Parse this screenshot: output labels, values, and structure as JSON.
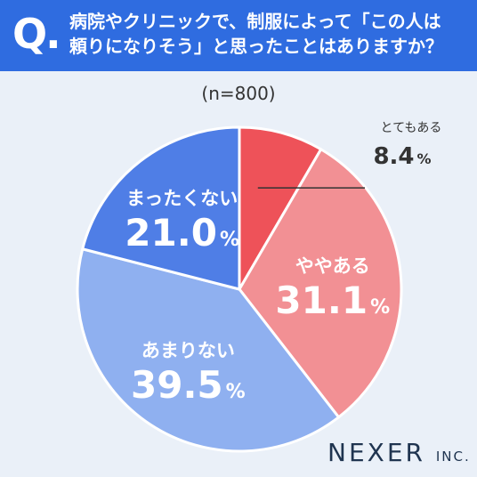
{
  "question": {
    "mark": "Q.",
    "line1": "病院やクリニックで、制服によって「この人は",
    "line2": "頼りになりそう」と思ったことはありますか？"
  },
  "sample_label": "(n=800)",
  "brand": {
    "name": "NEXER",
    "suffix": "INC."
  },
  "chart_data": {
    "type": "pie",
    "unit": "%",
    "slices": [
      {
        "label": "とてもある",
        "value": 8.4,
        "display": "8.4",
        "color": "#ee5259"
      },
      {
        "label": "ややある",
        "value": 31.1,
        "display": "31.1",
        "color": "#f29094"
      },
      {
        "label": "あまりない",
        "value": 39.5,
        "display": "39.5",
        "color": "#8fb0f0"
      },
      {
        "label": "まったくない",
        "value": 21.0,
        "display": "21.0",
        "color": "#4f7ee6"
      }
    ]
  }
}
